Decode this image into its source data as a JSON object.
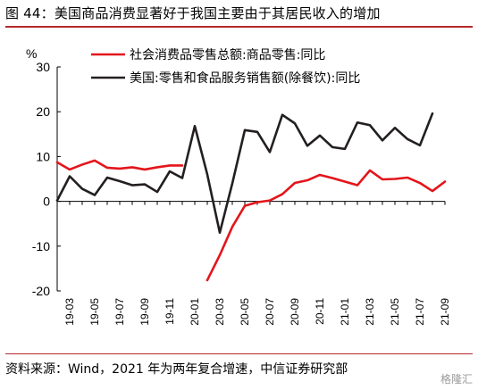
{
  "title": "图 44：美国商品消费显著好于我国主要由于其居民收入的增加",
  "source": "资料来源：Wind，2021 年为两年复合增速，中信证券研究部",
  "watermark": "格隆汇",
  "chart_data": {
    "type": "line",
    "ylabel": "%",
    "ylim": [
      -20,
      30
    ],
    "yticks": [
      -20,
      -10,
      0,
      10,
      20,
      30
    ],
    "grid": false,
    "legend_position": "top",
    "categories": [
      "19-02",
      "19-03",
      "19-04",
      "19-05",
      "19-06",
      "19-07",
      "19-08",
      "19-09",
      "19-10",
      "19-11",
      "19-12",
      "20-01",
      "20-02",
      "20-03",
      "20-04",
      "20-05",
      "20-06",
      "20-07",
      "20-08",
      "20-09",
      "20-10",
      "20-11",
      "20-12",
      "21-01",
      "21-02",
      "21-03",
      "21-04",
      "21-05",
      "21-06",
      "21-07",
      "21-08",
      "21-09"
    ],
    "x_tick_labels": [
      "19-03",
      "19-05",
      "19-07",
      "19-09",
      "19-11",
      "20-01",
      "20-03",
      "20-05",
      "20-07",
      "20-09",
      "20-11",
      "21-01",
      "21-03",
      "21-05",
      "21-07",
      "21-09"
    ],
    "series": [
      {
        "name": "社会消费品零售总额:商品零售:同比",
        "color": "#e3151b",
        "values": [
          8.7,
          7.1,
          8.2,
          9.1,
          7.5,
          7.3,
          7.6,
          7.1,
          7.6,
          8.0,
          8.0,
          null,
          -17.6,
          -12.0,
          -5.7,
          -1.0,
          -0.2,
          0.2,
          1.6,
          4.1,
          4.7,
          5.9,
          5.2,
          4.4,
          3.6,
          6.9,
          4.9,
          5.0,
          5.3,
          4.1,
          2.3,
          4.4
        ]
      },
      {
        "name": "美国:零售和食品服务销售额(除餐饮):同比",
        "color": "#231f20",
        "values": [
          0.2,
          5.6,
          2.8,
          1.4,
          5.3,
          4.5,
          3.6,
          3.8,
          2.1,
          6.7,
          5.2,
          16.8,
          6.0,
          -7.0,
          4.0,
          15.9,
          15.5,
          11.0,
          19.3,
          17.4,
          12.4,
          14.7,
          12.1,
          11.7,
          17.6,
          17.0,
          13.6,
          16.4,
          13.9,
          12.5,
          19.6,
          null
        ]
      }
    ]
  }
}
